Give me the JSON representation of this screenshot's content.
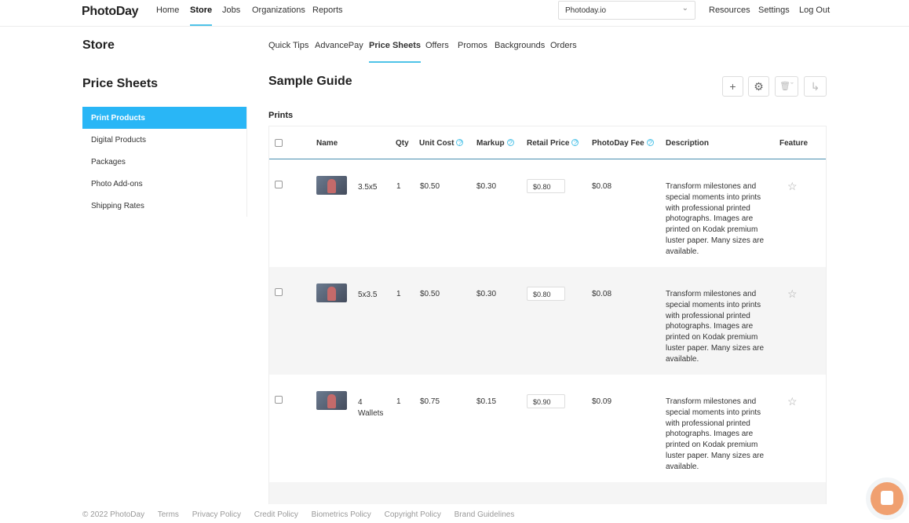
{
  "header": {
    "logo": "PhotoDay",
    "nav": [
      "Home",
      "Store",
      "Jobs",
      "Organizations",
      "Reports"
    ],
    "active": "Store",
    "studio_select": "Photoday.io",
    "right": [
      "Resources",
      "Settings",
      "Log Out"
    ]
  },
  "store_title": "Store",
  "subtabs": [
    "Quick Tips",
    "AdvancePay",
    "Price Sheets",
    "Offers",
    "Promos",
    "Backgrounds",
    "Orders"
  ],
  "sidebar": {
    "title": "Price Sheets",
    "items": [
      "Print Products",
      "Digital Products",
      "Packages",
      "Photo Add-ons",
      "Shipping Rates"
    ],
    "active": "Print Products"
  },
  "main": {
    "title": "Sample Guide",
    "toolbar": [
      "plus-icon",
      "gear-icon",
      "trash-icon",
      "export-arrow-icon"
    ],
    "section": "Prints",
    "columns": [
      "Name",
      "Qty",
      "Unit Cost",
      "Markup",
      "Retail Price",
      "PhotoDay Fee",
      "Description",
      "Feature"
    ],
    "rows": [
      {
        "name": "3.5x5",
        "qty": "1",
        "unit_cost": "$0.50",
        "markup": "$0.30",
        "retail": "$0.80",
        "fee": "$0.08",
        "description": "Transform milestones and special moments into prints with professional printed photographs. Images are printed on Kodak premium luster paper. Many sizes are available."
      },
      {
        "name": "5x3.5",
        "qty": "1",
        "unit_cost": "$0.50",
        "markup": "$0.30",
        "retail": "$0.80",
        "fee": "$0.08",
        "description": "Transform milestones and special moments into prints with professional printed photographs. Images are printed on Kodak premium luster paper. Many sizes are available."
      },
      {
        "name": "4 Wallets",
        "qty": "1",
        "unit_cost": "$0.75",
        "markup": "$0.15",
        "retail": "$0.90",
        "fee": "$0.09",
        "description": "Transform milestones and special moments into prints with professional printed photographs. Images are printed on Kodak premium luster paper. Many sizes are available."
      }
    ]
  },
  "footer": [
    "© 2022 PhotoDay",
    "Terms",
    "Privacy Policy",
    "Credit Policy",
    "Biometrics Policy",
    "Copyright Policy",
    "Brand Guidelines"
  ],
  "colors": {
    "accent": "#29b6f6",
    "chat": "#f0a070"
  }
}
